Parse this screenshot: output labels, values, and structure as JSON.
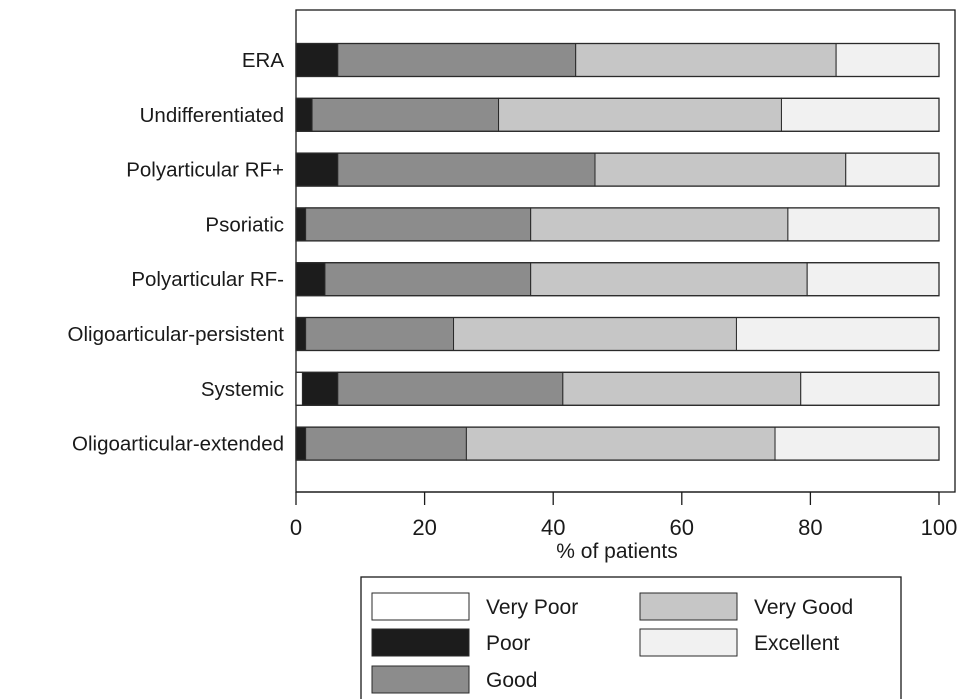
{
  "chart_data": {
    "type": "bar",
    "orientation": "horizontal",
    "stacked": true,
    "title": "",
    "xlabel": "% of patients",
    "ylabel": "",
    "xlim": [
      0,
      100
    ],
    "xticks": [
      0,
      20,
      40,
      60,
      80,
      100
    ],
    "xtick_labels": [
      "0",
      "20",
      "40",
      "60",
      "80",
      "100"
    ],
    "grid": false,
    "legend_position": "bottom",
    "categories": [
      "ERA",
      "Undifferentiated",
      "Polyarticular RF+",
      "Psoriatic",
      "Polyarticular RF-",
      "Oligoarticular-persistent",
      "Systemic",
      "Oligoarticular-extended"
    ],
    "series": [
      {
        "name": "Very Poor",
        "color": "#ffffff",
        "values": [
          0,
          0,
          0,
          0,
          0,
          0,
          1,
          0
        ]
      },
      {
        "name": "Poor",
        "color": "#1c1c1c",
        "values": [
          6.5,
          2.5,
          6.5,
          1.5,
          4.5,
          1.5,
          5.5,
          1.5
        ]
      },
      {
        "name": "Good",
        "color": "#8c8c8c",
        "values": [
          37,
          29,
          40,
          35,
          32,
          23,
          35,
          25
        ]
      },
      {
        "name": "Very Good",
        "color": "#c6c6c6",
        "values": [
          40.5,
          44,
          39,
          40,
          43,
          44,
          37,
          48
        ]
      },
      {
        "name": "Excellent",
        "color": "#f1f1f1",
        "values": [
          16,
          24.5,
          14.5,
          23.5,
          20.5,
          31.5,
          21.5,
          25.5
        ]
      }
    ]
  }
}
